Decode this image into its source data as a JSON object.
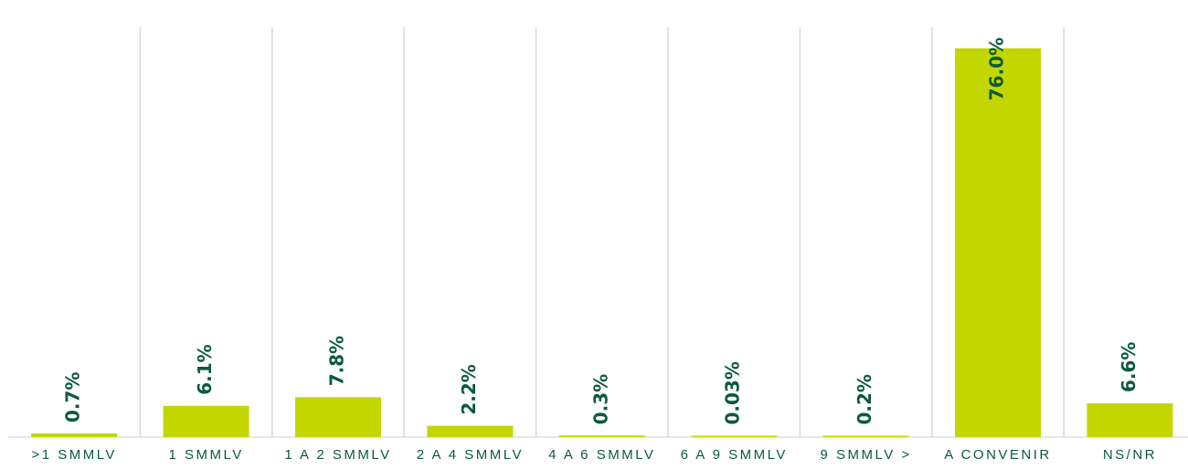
{
  "colors": {
    "bar": "#c4d600",
    "value_label": "#0b5a3c",
    "category_label": "#0b5a3c"
  },
  "chart_data": {
    "type": "bar",
    "categories": [
      ">1 SMMLV",
      "1 SMMLV",
      "1 A 2 SMMLV",
      "2 A 4 SMMLV",
      "4 A 6 SMMLV",
      "6 A 9 SMMLV",
      "9  SMMLV >",
      "A CONVENIR",
      "NS/NR"
    ],
    "values": [
      0.7,
      6.1,
      7.8,
      2.2,
      0.3,
      0.03,
      0.2,
      76.0,
      6.6
    ],
    "value_labels": [
      "0.7%",
      "6.1%",
      "7.8%",
      "2.2%",
      "0.3%",
      "0.03%",
      "0.2%",
      "76.0%",
      "6.6%"
    ],
    "ylim": [
      0,
      76
    ],
    "grid": "vertical separators between categories",
    "legend": "none"
  }
}
